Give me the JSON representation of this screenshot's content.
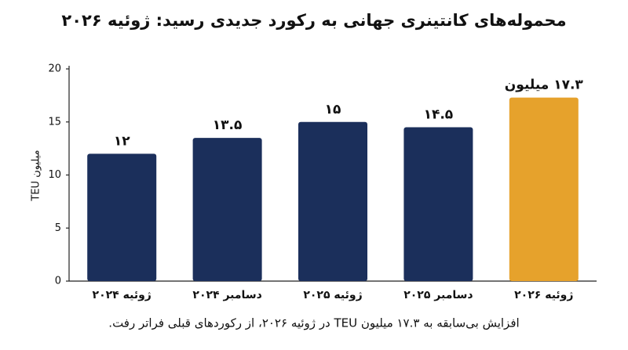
{
  "chart_data": {
    "type": "bar",
    "title": "محموله‌های کانتینری جهانی به رکورد جدیدی رسید: ژوئیه ۲۰۲۶",
    "y_label": "میلیون TEU",
    "caption": "افزایش بی‌سابقه به ۱۷.۳ میلیون TEU در ژوئیه ۲۰۲۶، از رکوردهای قبلی فراتر رفت.",
    "categories": [
      "ژوئیه ۲۰۲۴",
      "دسامبر ۲۰۲۴",
      "ژوئیه ۲۰۲۵",
      "دسامبر ۲۰۲۵",
      "ژوئیه ۲۰۲۶"
    ],
    "values": [
      12,
      13.5,
      15,
      14.5,
      17.3
    ],
    "value_labels": [
      "۱۲",
      "۱۳.۵",
      "۱۵",
      "۱۴.۵",
      "۱۷.۳ میلیون"
    ],
    "colors": [
      "#1b2f5b",
      "#1b2f5b",
      "#1b2f5b",
      "#1b2f5b",
      "#e6a22c"
    ],
    "ylim": [
      0,
      20
    ],
    "yticks": [
      0,
      5,
      10,
      15,
      20
    ],
    "grid": false
  }
}
